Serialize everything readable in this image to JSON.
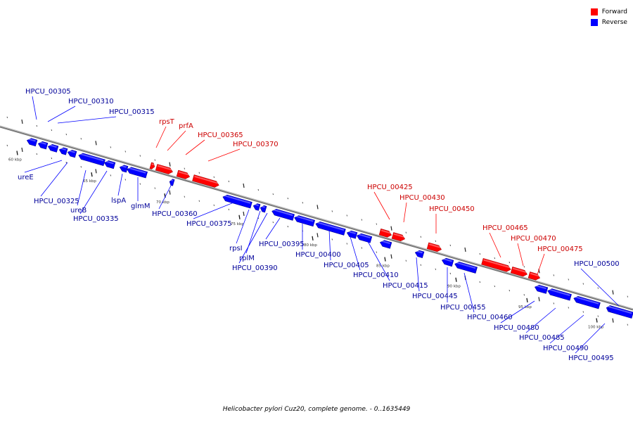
{
  "caption": "Helicobacter pylori Cuz20, complete genome. - 0..1635449",
  "legend": {
    "forward_label": "Forward",
    "reverse_label": "Reverse",
    "forward_color": "#ff0000",
    "reverse_color": "#0000ff"
  },
  "colors": {
    "forward": "#ff0000",
    "reverse": "#0000ff",
    "forward_text": "#cc0000",
    "reverse_text": "#000099",
    "backbone": "#888888"
  },
  "scale_marks": [
    "60 kbp",
    "65 kbp",
    "70 kbp",
    "75 kbp",
    "80 kbp",
    "85 kbp",
    "90 kbp",
    "95 kbp",
    "100 kbp"
  ],
  "genes": [
    {
      "id": "HPCU_00305",
      "strand": "reverse"
    },
    {
      "id": "HPCU_00310",
      "strand": "reverse"
    },
    {
      "id": "HPCU_00315",
      "strand": "reverse"
    },
    {
      "id": "ureE",
      "strand": "reverse"
    },
    {
      "id": "HPCU_00325",
      "strand": "reverse"
    },
    {
      "id": "ureB",
      "strand": "reverse"
    },
    {
      "id": "HPCU_00335",
      "strand": "reverse"
    },
    {
      "id": "lspA",
      "strand": "reverse"
    },
    {
      "id": "glmM",
      "strand": "reverse"
    },
    {
      "id": "HPCU_00360",
      "strand": "reverse"
    },
    {
      "id": "rpsT",
      "strand": "forward"
    },
    {
      "id": "prfA",
      "strand": "forward"
    },
    {
      "id": "HPCU_00365",
      "strand": "forward"
    },
    {
      "id": "HPCU_00370",
      "strand": "forward"
    },
    {
      "id": "HPCU_00375",
      "strand": "reverse"
    },
    {
      "id": "rpsI",
      "strand": "reverse"
    },
    {
      "id": "rplM",
      "strand": "reverse"
    },
    {
      "id": "HPCU_00390",
      "strand": "reverse"
    },
    {
      "id": "HPCU_00395",
      "strand": "reverse"
    },
    {
      "id": "HPCU_00400",
      "strand": "reverse"
    },
    {
      "id": "HPCU_00405",
      "strand": "reverse"
    },
    {
      "id": "HPCU_00410",
      "strand": "reverse"
    },
    {
      "id": "HPCU_00415",
      "strand": "reverse"
    },
    {
      "id": "HPCU_00425",
      "strand": "forward"
    },
    {
      "id": "HPCU_00430",
      "strand": "forward"
    },
    {
      "id": "HPCU_00450",
      "strand": "forward"
    },
    {
      "id": "HPCU_00445",
      "strand": "reverse"
    },
    {
      "id": "HPCU_00455",
      "strand": "reverse"
    },
    {
      "id": "HPCU_00460",
      "strand": "reverse"
    },
    {
      "id": "HPCU_00465",
      "strand": "forward"
    },
    {
      "id": "HPCU_00470",
      "strand": "forward"
    },
    {
      "id": "HPCU_00475",
      "strand": "forward"
    },
    {
      "id": "HPCU_00480",
      "strand": "reverse"
    },
    {
      "id": "HPCU_00485",
      "strand": "reverse"
    },
    {
      "id": "HPCU_00490",
      "strand": "reverse"
    },
    {
      "id": "HPCU_00495",
      "strand": "reverse"
    },
    {
      "id": "HPCU_00500",
      "strand": "reverse"
    }
  ]
}
